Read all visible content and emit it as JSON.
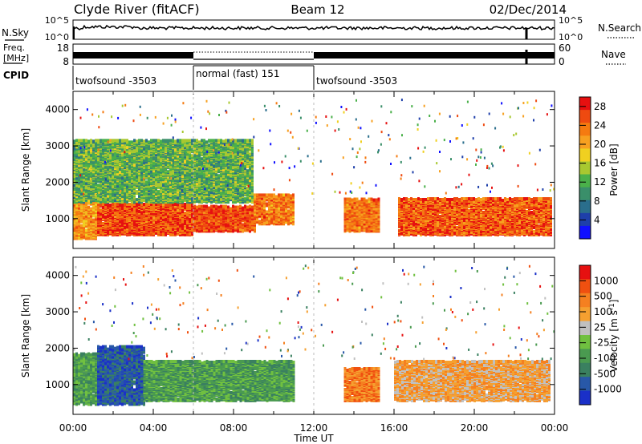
{
  "header": {
    "station": "Clyde River (fitACF)",
    "beam": "Beam 12",
    "date": "02/Dec/2014"
  },
  "top_panel": {
    "left_label": "N.Sky",
    "right_label": "N.Search",
    "left_ticks": [
      "10^5",
      "10^0"
    ],
    "right_ticks": [
      "10^5",
      "10^0"
    ]
  },
  "freq_panel": {
    "left_label_1": "Freq.",
    "left_label_2": "[MHz]",
    "left_ticks": [
      "18",
      "8"
    ],
    "right_ticks": [
      "60",
      "0"
    ],
    "right_label": "Nave"
  },
  "cpid": {
    "label": "CPID",
    "segments": [
      {
        "label": "twofsound -3503",
        "start": 0,
        "end": 6
      },
      {
        "label": "normal (fast) 151",
        "start": 6,
        "end": 12
      },
      {
        "label": "twofsound -3503",
        "start": 12,
        "end": 24
      }
    ]
  },
  "chart_data": [
    {
      "type": "heatmap",
      "name": "power",
      "ylabel": "Slant Range [km]",
      "ytick_labels": [
        "1000",
        "2000",
        "3000",
        "4000"
      ],
      "ylim": [
        180,
        4500
      ],
      "xlim": [
        0,
        24
      ],
      "colorbar": {
        "label": "Power [dB]",
        "tick_labels": [
          "4",
          "8",
          "12",
          "16",
          "20",
          "24",
          "28"
        ],
        "tick_values": [
          4,
          8,
          12,
          16,
          20,
          24,
          28
        ],
        "range": [
          0,
          30
        ],
        "colors": [
          "#1010ff",
          "#1e3faa",
          "#2a6e8c",
          "#3a8f6a",
          "#4ab04a",
          "#a8c830",
          "#f0d020",
          "#f7a020",
          "#f57a10",
          "#ee4a10",
          "#e61010"
        ]
      },
      "scatter_regions": [
        {
          "t0": 0.0,
          "t1": 1.2,
          "r0": 500,
          "r1": 1900,
          "level": 22
        },
        {
          "t0": 1.2,
          "t1": 6.0,
          "r0": 600,
          "r1": 1450,
          "level": 27
        },
        {
          "t0": 6.0,
          "t1": 9.0,
          "r0": 700,
          "r1": 1400,
          "level": 27
        },
        {
          "t0": 9.0,
          "t1": 11.0,
          "r0": 900,
          "r1": 1700,
          "level": 24
        },
        {
          "t0": 13.5,
          "t1": 15.2,
          "r0": 700,
          "r1": 1600,
          "level": 24
        },
        {
          "t0": 16.2,
          "t1": 23.8,
          "r0": 600,
          "r1": 1600,
          "level": 26
        },
        {
          "t0": 0.0,
          "t1": 9.0,
          "r0": 1500,
          "r1": 3200,
          "level": 12
        }
      ]
    },
    {
      "type": "heatmap",
      "name": "velocity",
      "ylabel": "Slant Range [km]",
      "ytick_labels": [
        "1000",
        "2000",
        "3000",
        "4000"
      ],
      "ylim": [
        180,
        4500
      ],
      "xlim": [
        0,
        24
      ],
      "xlabel": "Time UT",
      "xtick_labels": [
        "00:00",
        "04:00",
        "08:00",
        "12:00",
        "16:00",
        "20:00",
        "00:00"
      ],
      "xtick_values": [
        0,
        4,
        8,
        12,
        16,
        20,
        24
      ],
      "colorbar": {
        "label": "Velocity [m s^-1]",
        "tick_labels": [
          "1000",
          "500",
          "100",
          "25",
          "-25",
          "-100",
          "-500",
          "-1000"
        ],
        "colors": [
          "#1a30c8",
          "#2858a8",
          "#3a8060",
          "#4a9a50",
          "#70c040",
          "#c0c0c0",
          "#f5a030",
          "#f58020",
          "#f05010",
          "#e61010"
        ]
      },
      "scatter_regions": [
        {
          "t0": 0.0,
          "t1": 1.2,
          "r0": 500,
          "r1": 1900,
          "level": 3
        },
        {
          "t0": 1.2,
          "t1": 3.5,
          "r0": 500,
          "r1": 2100,
          "level": 1
        },
        {
          "t0": 3.5,
          "t1": 11.0,
          "r0": 600,
          "r1": 1700,
          "level": 3
        },
        {
          "t0": 13.5,
          "t1": 15.2,
          "r0": 600,
          "r1": 1500,
          "level": 7
        },
        {
          "t0": 16.0,
          "t1": 23.8,
          "r0": 600,
          "r1": 1700,
          "level": 6
        }
      ]
    }
  ]
}
